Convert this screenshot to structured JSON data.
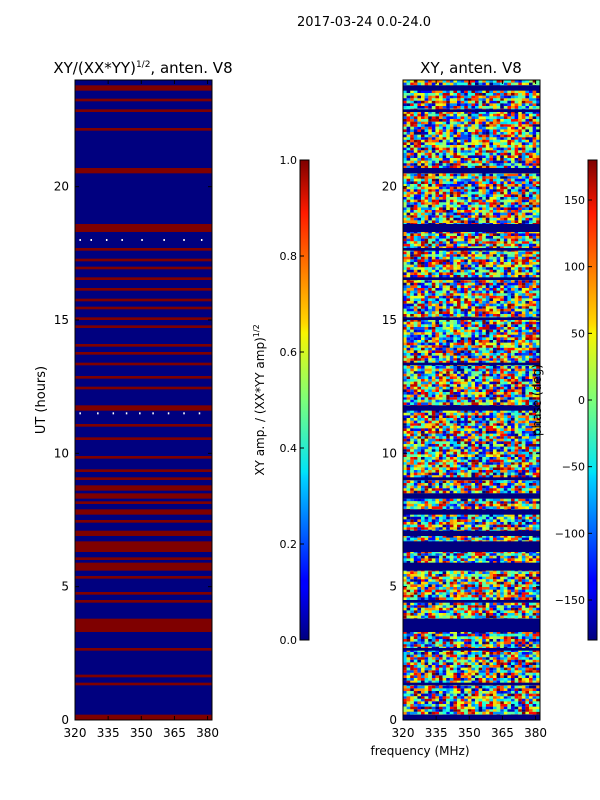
{
  "suptitle": "2017-03-24 0.0-24.0",
  "chart_data": [
    {
      "type": "heatmap",
      "title": "XY/(XX*YY)",
      "title_exponent": "1/2",
      "title_suffix": ", anten. V8",
      "xlabel": "",
      "ylabel": "UT (hours)",
      "xlim": [
        320,
        382
      ],
      "ylim": [
        0,
        24
      ],
      "xticks": [
        320,
        335,
        350,
        365,
        380
      ],
      "yticks": [
        0,
        5,
        10,
        15,
        20
      ],
      "background_value": 0.0,
      "saturated_bands_hours": [
        [
          0.0,
          0.2
        ],
        [
          1.3,
          1.4
        ],
        [
          1.6,
          1.7
        ],
        [
          2.6,
          2.7
        ],
        [
          3.3,
          3.8
        ],
        [
          4.4,
          4.5
        ],
        [
          4.7,
          4.8
        ],
        [
          5.3,
          5.4
        ],
        [
          5.6,
          5.9
        ],
        [
          6.0,
          6.1
        ],
        [
          6.3,
          6.7
        ],
        [
          6.9,
          7.1
        ],
        [
          7.4,
          7.5
        ],
        [
          7.7,
          7.9
        ],
        [
          8.1,
          8.2
        ],
        [
          8.3,
          8.5
        ],
        [
          8.6,
          8.8
        ],
        [
          9.0,
          9.1
        ],
        [
          9.3,
          9.4
        ],
        [
          9.8,
          9.9
        ],
        [
          10.5,
          10.6
        ],
        [
          11.0,
          11.1
        ],
        [
          11.6,
          11.8
        ],
        [
          12.4,
          12.5
        ],
        [
          12.8,
          12.9
        ],
        [
          13.3,
          13.4
        ],
        [
          13.7,
          13.8
        ],
        [
          14.0,
          14.1
        ],
        [
          14.7,
          14.8
        ],
        [
          15.0,
          15.1
        ],
        [
          15.4,
          15.5
        ],
        [
          15.7,
          15.8
        ],
        [
          16.1,
          16.2
        ],
        [
          16.5,
          16.6
        ],
        [
          16.9,
          17.0
        ],
        [
          17.2,
          17.3
        ],
        [
          17.6,
          17.7
        ],
        [
          18.3,
          18.6
        ],
        [
          20.5,
          20.7
        ],
        [
          22.1,
          22.2
        ],
        [
          22.8,
          22.9
        ],
        [
          23.2,
          23.3
        ],
        [
          23.6,
          23.8
        ]
      ],
      "colorbar": {
        "label": "XY amp. / (XX*YY amp)",
        "label_exponent": "1/2",
        "range": [
          0.0,
          1.0
        ],
        "ticks": [
          "0.0",
          "0.2",
          "0.4",
          "0.6",
          "0.8",
          "1.0"
        ],
        "colormap": "jet"
      }
    },
    {
      "type": "heatmap",
      "title": "XY, anten. V8",
      "xlabel": "frequency (MHz)",
      "ylabel": "",
      "xlim": [
        320,
        382
      ],
      "ylim": [
        0,
        24
      ],
      "xticks": [
        320,
        335,
        350,
        365,
        380
      ],
      "yticks": [
        0,
        5,
        10,
        15,
        20
      ],
      "value_description": "phase noise, uniformly distributed between -180 and 180 degrees",
      "masked_bands_hours": [
        [
          0.0,
          0.2
        ],
        [
          1.3,
          1.4
        ],
        [
          2.6,
          2.7
        ],
        [
          3.3,
          3.8
        ],
        [
          4.4,
          4.5
        ],
        [
          5.6,
          5.9
        ],
        [
          6.3,
          6.7
        ],
        [
          6.9,
          7.1
        ],
        [
          7.7,
          7.9
        ],
        [
          8.3,
          8.5
        ],
        [
          9.0,
          9.1
        ],
        [
          11.6,
          11.8
        ],
        [
          13.3,
          13.4
        ],
        [
          15.0,
          15.1
        ],
        [
          16.5,
          16.6
        ],
        [
          17.6,
          17.7
        ],
        [
          18.3,
          18.6
        ],
        [
          20.5,
          20.7
        ],
        [
          22.8,
          22.9
        ],
        [
          23.6,
          23.8
        ]
      ],
      "colorbar": {
        "label": "phase (deg)",
        "range": [
          -180,
          180
        ],
        "ticks": [
          "−150",
          "−100",
          "−50",
          "0",
          "50",
          "100",
          "150"
        ],
        "colormap": "jet"
      }
    }
  ]
}
